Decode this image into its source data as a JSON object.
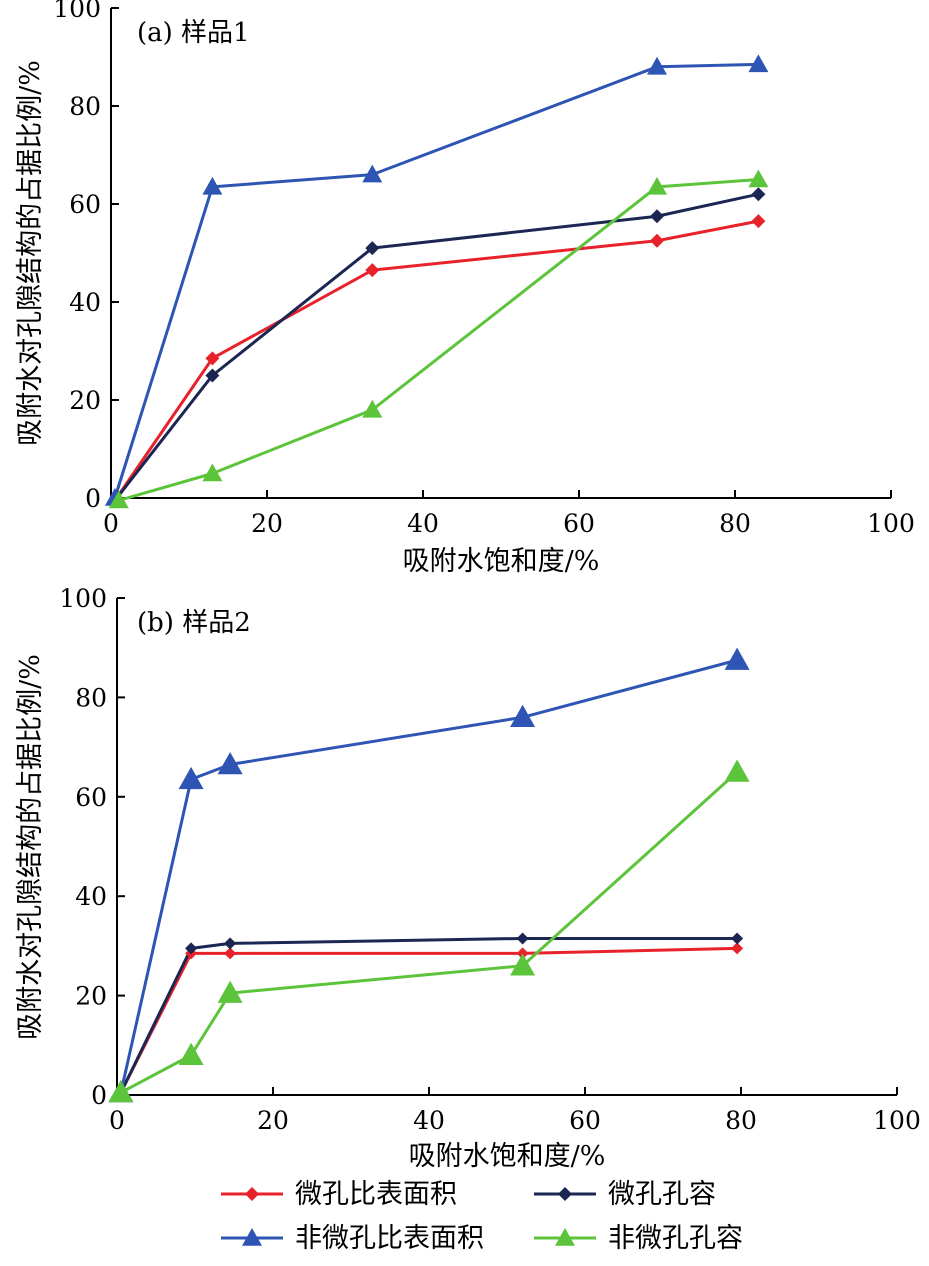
{
  "legend": {
    "items": [
      {
        "label": "微孔比表面积",
        "color": "#e8222b",
        "marker": "diamond"
      },
      {
        "label": "微孔孔容",
        "color": "#1c2653",
        "marker": "diamond"
      },
      {
        "label": "非微孔比表面积",
        "color": "#2e54b4",
        "marker": "triangle"
      },
      {
        "label": "非微孔孔容",
        "color": "#5cc43a",
        "marker": "triangle"
      }
    ]
  },
  "chart_data": [
    {
      "type": "line",
      "panel_label": "(a) 样品1",
      "xlabel": "吸附水饱和度/%",
      "ylabel": "吸附水对孔隙结构的占据比例/%",
      "xlim": [
        0,
        100
      ],
      "ylim": [
        0,
        100
      ],
      "xticks": [
        0,
        20,
        40,
        60,
        80,
        100
      ],
      "yticks": [
        0,
        20,
        40,
        60,
        80,
        100
      ],
      "grid": false,
      "series": [
        {
          "name": "微孔比表面积",
          "color": "#e8222b",
          "marker": "diamond",
          "x": [
            0.5,
            13,
            33.5,
            70,
            83
          ],
          "y": [
            -0.5,
            28.5,
            46.5,
            52.5,
            56.5
          ]
        },
        {
          "name": "微孔孔容",
          "color": "#1c2653",
          "marker": "diamond",
          "x": [
            0.5,
            13,
            33.5,
            70,
            83
          ],
          "y": [
            -0.5,
            25,
            51,
            57.5,
            62
          ]
        },
        {
          "name": "非微孔比表面积",
          "color": "#2e54b4",
          "marker": "triangle",
          "x": [
            0.5,
            13,
            33.5,
            70,
            83
          ],
          "y": [
            0,
            63.5,
            66,
            88,
            88.5
          ]
        },
        {
          "name": "非微孔孔容",
          "color": "#5cc43a",
          "marker": "triangle",
          "x": [
            1,
            13,
            33.5,
            70,
            83
          ],
          "y": [
            -0.5,
            5,
            18,
            63.5,
            65
          ]
        }
      ]
    },
    {
      "type": "line",
      "panel_label": "(b) 样品2",
      "xlabel": "吸附水饱和度/%",
      "ylabel": "吸附水对孔隙结构的占据比例/%",
      "xlim": [
        0,
        100
      ],
      "ylim": [
        0,
        100
      ],
      "xticks": [
        0,
        20,
        40,
        60,
        80,
        100
      ],
      "yticks": [
        0,
        20,
        40,
        60,
        80,
        100
      ],
      "grid": false,
      "series": [
        {
          "name": "微孔比表面积",
          "color": "#e8222b",
          "marker": "diamond",
          "x": [
            0.5,
            9.5,
            14.5,
            52,
            79.5
          ],
          "y": [
            0.5,
            28.5,
            28.5,
            28.5,
            29.5
          ]
        },
        {
          "name": "微孔孔容",
          "color": "#1c2653",
          "marker": "diamond",
          "x": [
            0.5,
            9.5,
            14.5,
            52,
            79.5
          ],
          "y": [
            0.5,
            29.5,
            30.5,
            31.5,
            31.5
          ]
        },
        {
          "name": "非微孔比表面积",
          "color": "#2e54b4",
          "marker": "triangle",
          "x": [
            0.5,
            9.5,
            14.5,
            52,
            79.5
          ],
          "y": [
            0.5,
            63.5,
            66.5,
            76,
            87.5
          ]
        },
        {
          "name": "非微孔孔容",
          "color": "#5cc43a",
          "marker": "triangle",
          "x": [
            0.5,
            9.5,
            14.5,
            52,
            79.5
          ],
          "y": [
            0.5,
            8,
            20.5,
            26,
            65
          ]
        }
      ]
    }
  ]
}
